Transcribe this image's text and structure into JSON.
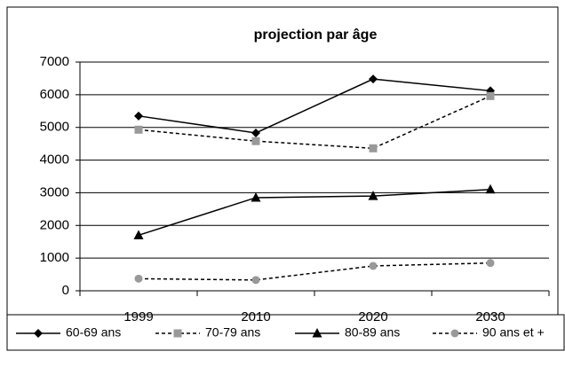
{
  "chart_data": {
    "type": "line",
    "title": "projection par âge",
    "categories": [
      "1999",
      "2010",
      "2020",
      "2030"
    ],
    "series": [
      {
        "name": "60-69 ans",
        "color": "#000000",
        "marker": "diamond",
        "line_style": "solid",
        "values": [
          5350,
          4830,
          6480,
          6120
        ]
      },
      {
        "name": "70-79 ans",
        "color": "#999999",
        "marker": "square",
        "line_style": "dashed",
        "values": [
          4930,
          4580,
          4360,
          5960
        ]
      },
      {
        "name": "80-89 ans",
        "color": "#000000",
        "marker": "triangle",
        "line_style": "solid",
        "values": [
          1700,
          2850,
          2900,
          3100
        ]
      },
      {
        "name": "90 ans et +",
        "color": "#999999",
        "marker": "circle",
        "line_style": "dashed",
        "values": [
          370,
          330,
          760,
          850
        ]
      }
    ],
    "ylim": [
      0,
      7000
    ],
    "yticks": [
      0,
      1000,
      2000,
      3000,
      4000,
      5000,
      6000,
      7000
    ],
    "grid": true,
    "legend": "bottom"
  }
}
